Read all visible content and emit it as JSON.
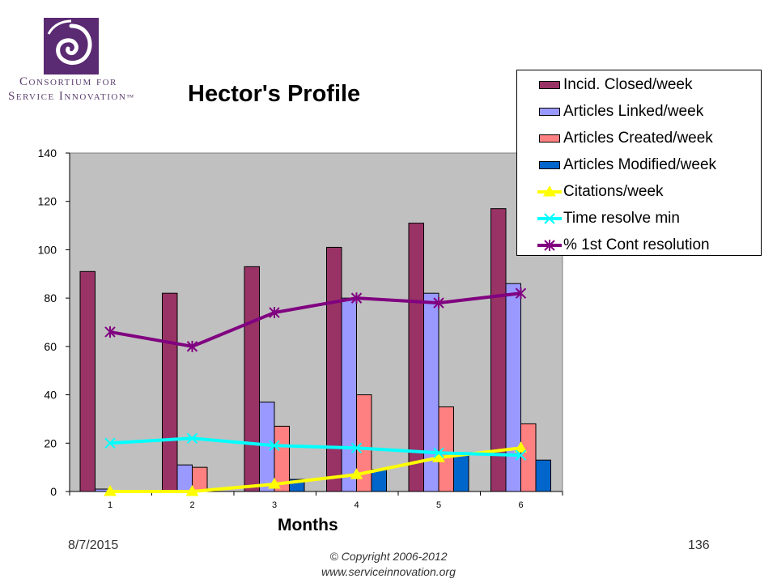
{
  "logo": {
    "line1": "Consortium for",
    "line2": "Service Innovation",
    "tm": "™"
  },
  "slide": {
    "date": "8/7/2015",
    "page_number": "136",
    "copyright_line1": "© Copyright 2006-2012",
    "copyright_line2": "www.serviceinnovation.org"
  },
  "colors": {
    "logo_purple": "#5a2a72",
    "plot_bg": "#c0c0c0"
  },
  "chart_data": {
    "type": "bar",
    "title": "Hector's Profile",
    "xlabel": "Months",
    "ylabel": "",
    "categories": [
      "1",
      "2",
      "3",
      "4",
      "5",
      "6"
    ],
    "ylim": [
      0,
      140
    ],
    "yticks": [
      "0",
      "20",
      "40",
      "60",
      "80",
      "100",
      "120",
      "140"
    ],
    "grid": false,
    "legend_position": "top-right",
    "series": [
      {
        "name": "Incid. Closed/week",
        "kind": "bar",
        "color": "#993366",
        "values": [
          91,
          82,
          93,
          101,
          111,
          117
        ]
      },
      {
        "name": "Articles Linked/week",
        "kind": "bar",
        "color": "#9999ff",
        "values": [
          1,
          11,
          37,
          80,
          82,
          86
        ]
      },
      {
        "name": "Articles Created/week",
        "kind": "bar",
        "color": "#ff8080",
        "values": [
          0.5,
          10,
          27,
          40,
          35,
          28
        ]
      },
      {
        "name": "Articles Modified/week",
        "kind": "bar",
        "color": "#0066cc",
        "values": [
          0,
          0,
          5,
          9,
          15,
          13
        ]
      },
      {
        "name": "Citations/week",
        "kind": "line",
        "marker": "triangle",
        "color": "#ffff00",
        "values": [
          0,
          0,
          3,
          7,
          14,
          18
        ]
      },
      {
        "name": "Time resolve min",
        "kind": "line",
        "marker": "x",
        "color": "#00ffff",
        "values": [
          20,
          22,
          19,
          18,
          16,
          15
        ]
      },
      {
        "name": "% 1st Cont resolution",
        "kind": "line",
        "marker": "star",
        "color": "#800080",
        "values": [
          66,
          60,
          74,
          80,
          78,
          82
        ]
      }
    ]
  }
}
